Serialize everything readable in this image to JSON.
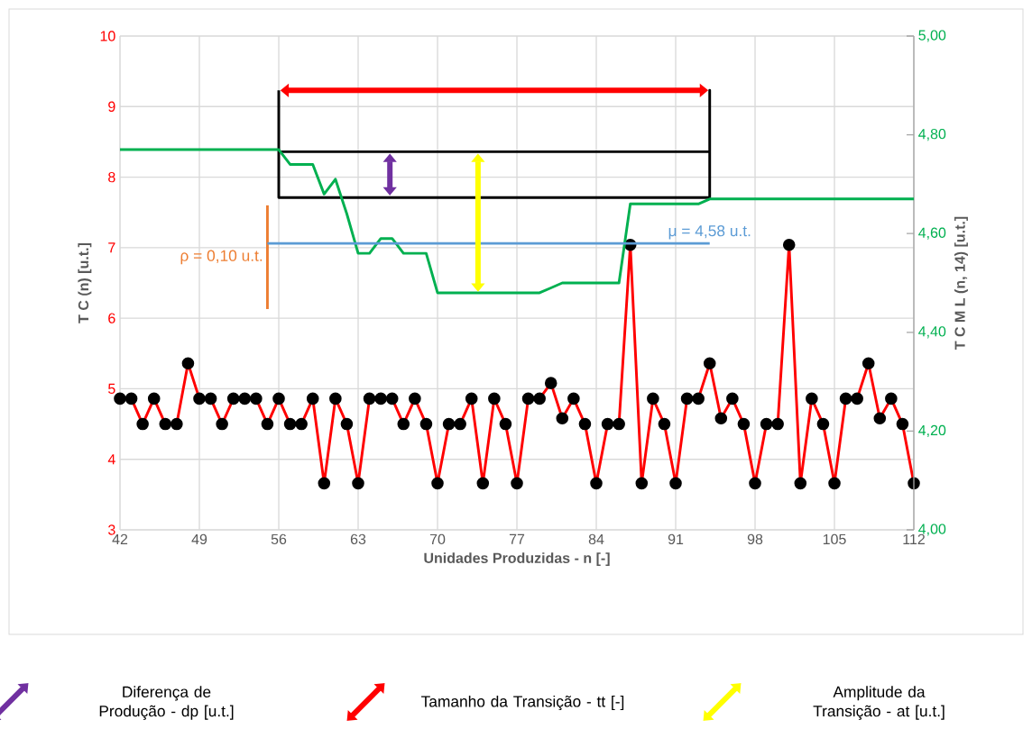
{
  "chart_data": {
    "type": "line",
    "xlabel": "Unidades Produzidas - n [-]",
    "ylabel": "T C (n) [u.t.]",
    "y2label": "T C M L (n, 14) [u.t.]",
    "x": [
      42,
      43,
      44,
      45,
      46,
      47,
      48,
      49,
      50,
      51,
      52,
      53,
      54,
      55,
      56,
      57,
      58,
      59,
      60,
      61,
      62,
      63,
      64,
      65,
      66,
      67,
      68,
      69,
      70,
      71,
      72,
      73,
      74,
      75,
      76,
      77,
      78,
      79,
      80,
      81,
      82,
      83,
      84,
      85,
      86,
      87,
      88,
      89,
      90,
      91,
      92,
      93,
      94,
      95,
      96,
      97,
      98,
      99,
      100,
      101,
      102,
      103,
      104,
      105,
      106,
      107,
      108,
      109,
      110,
      111,
      112
    ],
    "xlim": [
      42,
      112
    ],
    "xticks": [
      42,
      49,
      56,
      63,
      70,
      77,
      84,
      91,
      98,
      105,
      112
    ],
    "ylim": [
      3,
      10
    ],
    "yticks": [
      3,
      4,
      5,
      6,
      7,
      8,
      9,
      10
    ],
    "y2lim": [
      4,
      5
    ],
    "y2ticks": [
      {
        "value": 4,
        "label": "4,00"
      },
      {
        "value": 4.2,
        "label": "4,20"
      },
      {
        "value": 4.4,
        "label": "4,40"
      },
      {
        "value": 4.6,
        "label": "4,60"
      },
      {
        "value": 4.8,
        "label": "4,80"
      },
      {
        "value": 5,
        "label": "5,00"
      }
    ],
    "grid": true,
    "series": [
      {
        "color": "#ff0000",
        "marker": "circle",
        "values": [
          4.86,
          4.86,
          4.5,
          4.86,
          4.5,
          4.5,
          5.36,
          4.86,
          4.86,
          4.5,
          4.86,
          4.86,
          4.86,
          4.5,
          4.86,
          4.5,
          4.5,
          4.86,
          3.66,
          4.86,
          4.5,
          3.66,
          4.86,
          4.86,
          4.86,
          4.5,
          4.86,
          4.5,
          3.66,
          4.5,
          4.5,
          4.86,
          3.66,
          4.86,
          4.5,
          3.66,
          4.86,
          4.86,
          5.08,
          4.58,
          4.86,
          4.5,
          3.66,
          4.5,
          4.5,
          7.04,
          3.66,
          4.86,
          4.5,
          3.66,
          4.86,
          4.86,
          5.36,
          4.58,
          4.86,
          4.5,
          3.66,
          4.5,
          4.5,
          7.04,
          3.66,
          4.86,
          4.5,
          3.66,
          4.86,
          4.86,
          5.36,
          4.58,
          4.86,
          4.5,
          3.66
        ]
      },
      {
        "color": "#00b050",
        "axis": "y2",
        "values": [
          4.77,
          4.77,
          4.77,
          4.77,
          4.77,
          4.77,
          4.77,
          4.77,
          4.77,
          4.77,
          4.77,
          4.77,
          4.77,
          4.77,
          4.77,
          4.74,
          4.74,
          4.74,
          4.68,
          4.71,
          4.64,
          4.56,
          4.56,
          4.59,
          4.59,
          4.56,
          4.56,
          4.56,
          4.48,
          4.48,
          4.48,
          4.48,
          4.48,
          4.48,
          4.48,
          4.48,
          4.48,
          4.48,
          4.49,
          4.5,
          4.5,
          4.5,
          4.5,
          4.5,
          4.5,
          4.66,
          4.66,
          4.66,
          4.66,
          4.66,
          4.66,
          4.66,
          4.67,
          4.67,
          4.67,
          4.67,
          4.67,
          4.67,
          4.67,
          4.67,
          4.67,
          4.67,
          4.67,
          4.67,
          4.67,
          4.67,
          4.67,
          4.67,
          4.67,
          4.67,
          4.67
        ]
      },
      {
        "color": "#000000",
        "x": [
          56,
          56,
          94,
          94,
          94,
          56
        ],
        "values": [
          9.23,
          7.71,
          7.71,
          9.23,
          8.36,
          8.36
        ]
      },
      {
        "name": "μ = 4,58 u.t.",
        "color": "#5b9bd5",
        "axis": "y2",
        "x": [
          55,
          94
        ],
        "values": [
          4.58,
          4.58
        ]
      },
      {
        "name": "ρ  = 0,10 u.t.",
        "color": "#ed7d31",
        "x": [
          55,
          55
        ],
        "values": [
          6.13,
          7.6
        ]
      }
    ],
    "annotations": [
      "Diferença de Produção - dp [u.t.]",
      "Tamanho da Transição - tt [-]",
      "Amplitude da Transição - at [u.t.]"
    ]
  }
}
